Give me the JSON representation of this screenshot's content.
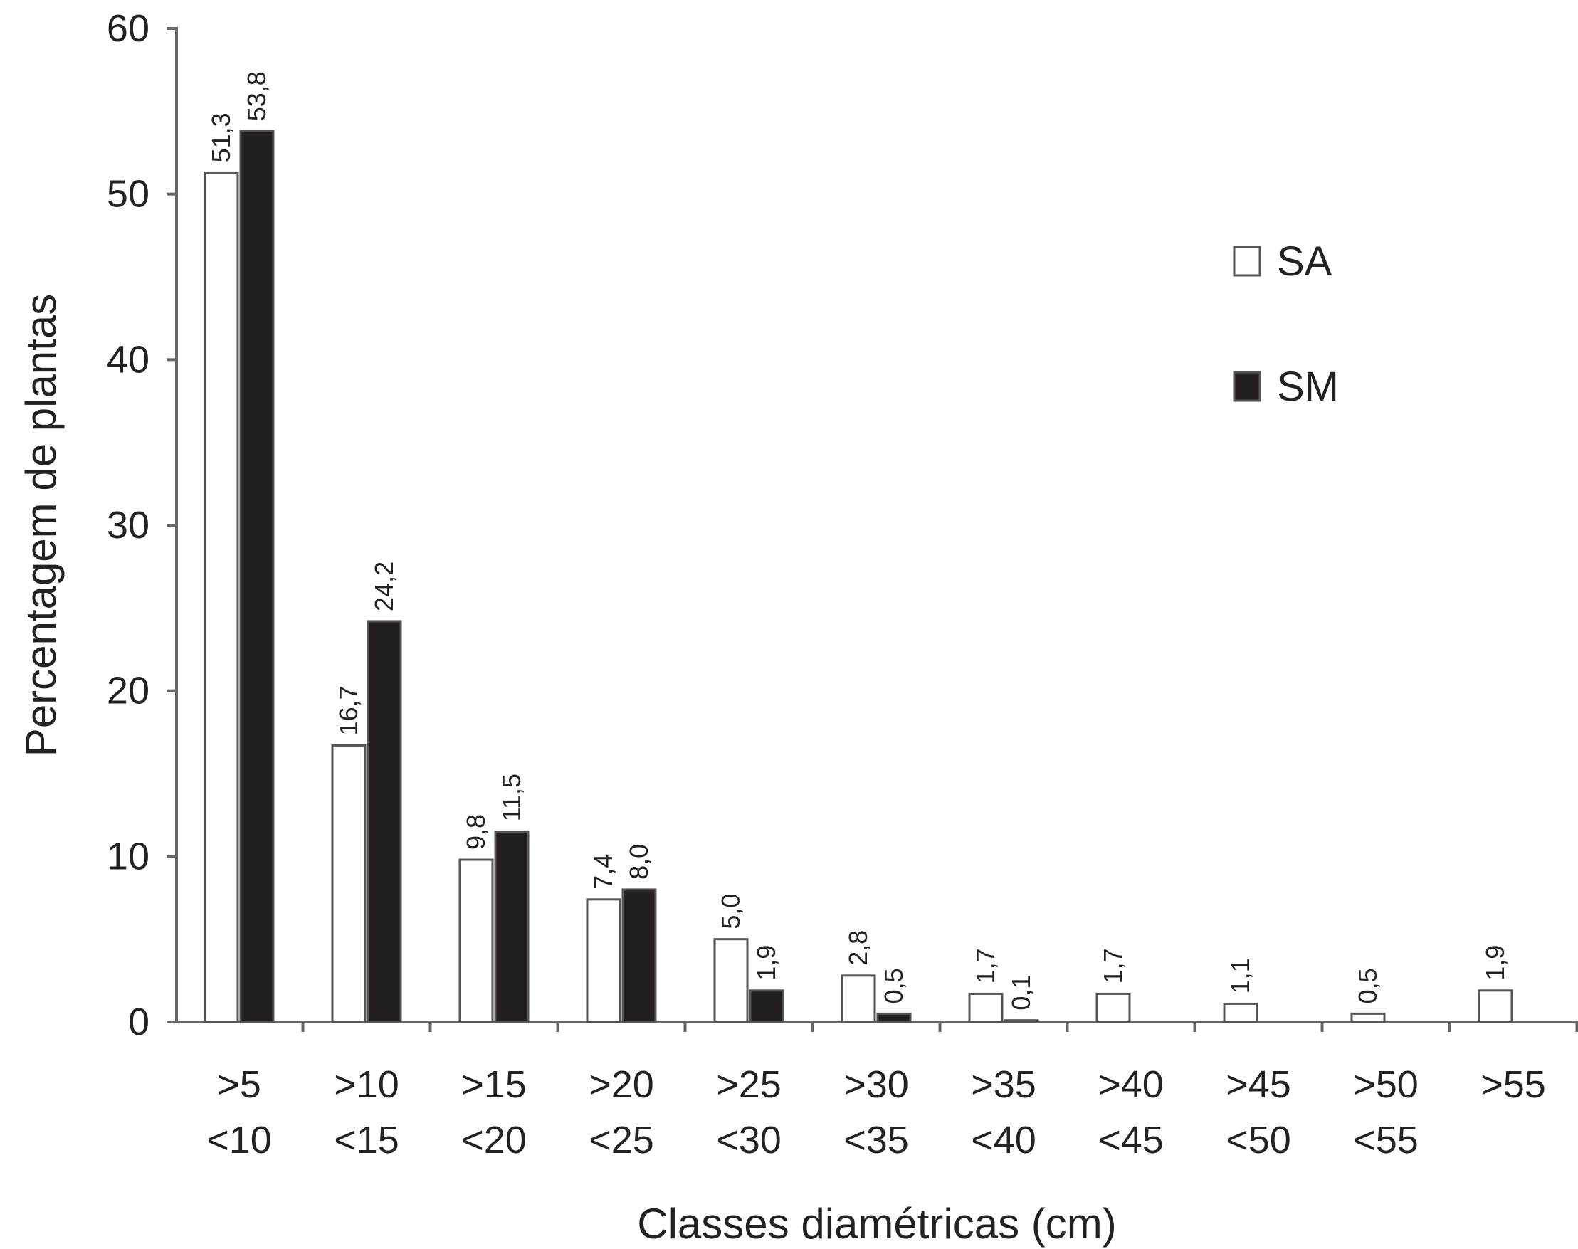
{
  "chart_data": {
    "type": "bar",
    "xlabel": "Classes diamétricas (cm)",
    "ylabel": "Percentagem de plantas",
    "ylim": [
      0,
      60
    ],
    "yticks": [
      "0",
      "10",
      "20",
      "30",
      "40",
      "50",
      "60"
    ],
    "categories": [
      [
        ">5",
        "<10"
      ],
      [
        ">10",
        "<15"
      ],
      [
        ">15",
        "<20"
      ],
      [
        ">20",
        "<25"
      ],
      [
        ">25",
        "<30"
      ],
      [
        ">30",
        "<35"
      ],
      [
        ">35",
        "<40"
      ],
      [
        ">40",
        "<45"
      ],
      [
        ">45",
        "<50"
      ],
      [
        ">50",
        "<55"
      ],
      [
        ">55",
        ""
      ]
    ],
    "series": [
      {
        "name": "SA",
        "color": "#ffffff",
        "values": [
          51.3,
          16.7,
          9.8,
          7.4,
          5.0,
          2.8,
          1.7,
          1.7,
          1.1,
          0.5,
          1.9
        ],
        "labels": [
          "51,3",
          "16,7",
          "9,8",
          "7,4",
          "5,0",
          "2,8",
          "1,7",
          "1,7",
          "1,1",
          "0,5",
          "1,9"
        ]
      },
      {
        "name": "SM",
        "color": "#231f20",
        "values": [
          53.8,
          24.2,
          11.5,
          8.0,
          1.9,
          0.5,
          0.1,
          null,
          null,
          null,
          null
        ],
        "labels": [
          "53,8",
          "24,2",
          "11,5",
          "8,0",
          "1,9",
          "0,5",
          "0,1",
          "",
          "",
          "",
          ""
        ]
      }
    ],
    "legend": "right",
    "grid": false
  }
}
